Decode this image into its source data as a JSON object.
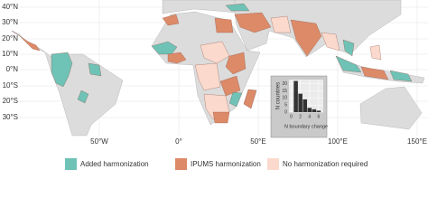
{
  "map": {
    "lat_labels": [
      "40°N",
      "30°N",
      "20°N",
      "10°N",
      "0°N",
      "10°S",
      "20°S",
      "30°S"
    ],
    "lon_labels": [
      "50°W",
      "0°",
      "50°E",
      "100°E",
      "150°E"
    ]
  },
  "legend": [
    {
      "label": "Added harmonization",
      "color": "#6ec2b6"
    },
    {
      "label": "IPUMS harmonization",
      "color": "#dc8a68"
    },
    {
      "label": "No harmonization required",
      "color": "#fbd9cd"
    }
  ],
  "inset": {
    "type": "bar",
    "ylabel": "N countries",
    "xlabel": "N boundary change",
    "x": [
      1,
      2,
      3,
      4,
      5,
      6
    ],
    "values": [
      22,
      13,
      9,
      3,
      2,
      1
    ],
    "color": "#333333",
    "xlim": [
      -0.5,
      7
    ],
    "ylim": [
      0,
      23
    ],
    "xticks": [
      0,
      2,
      4,
      6
    ],
    "yticks": [
      0,
      5,
      10,
      15,
      20
    ]
  }
}
